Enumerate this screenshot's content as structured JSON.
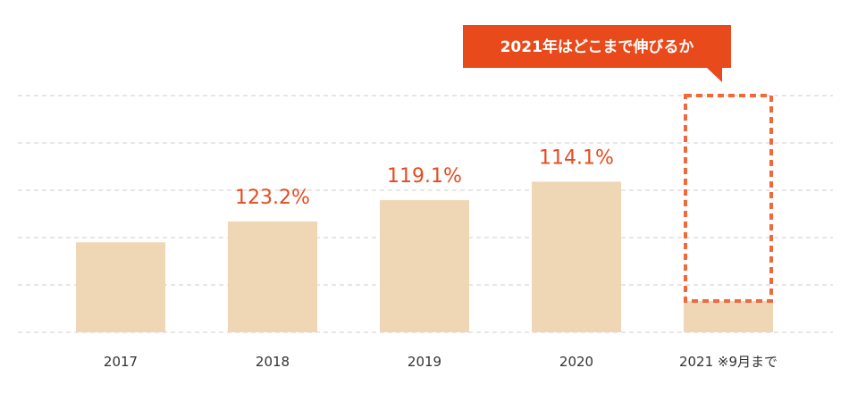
{
  "callout": {
    "text": "2021年はどこまで伸びるか"
  },
  "colors": {
    "bar": "#efd6b4",
    "accent": "#e84a1c",
    "projection_outline": "#ee6a3c",
    "grid": "#cfcfcf"
  },
  "chart_data": {
    "type": "bar",
    "categories": [
      "2017",
      "2018",
      "2019",
      "2020",
      "2021 ※9月まで"
    ],
    "values": [
      19,
      23.4,
      27.9,
      31.8,
      6.6
    ],
    "value_labels": [
      "",
      "123.2%",
      "119.1%",
      "114.1%",
      ""
    ],
    "projection": {
      "category": "2021 ※9月まで",
      "value": 50
    },
    "ylim": [
      0,
      50
    ],
    "grid_step": 10,
    "grid": true,
    "title": "",
    "xlabel": "",
    "ylabel": ""
  }
}
